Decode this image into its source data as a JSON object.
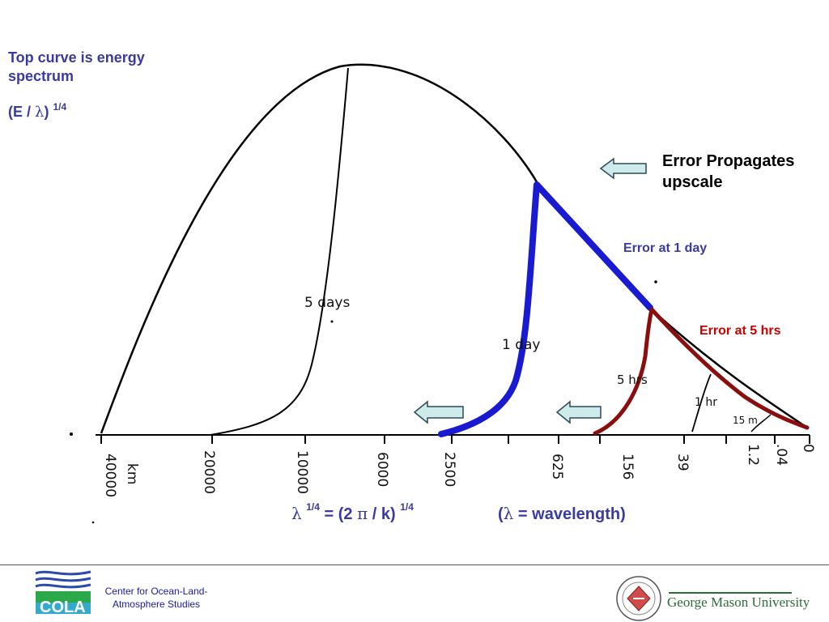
{
  "intro": {
    "line1": "Top curve is energy spectrum",
    "formula_prefix": "(E / ",
    "lambda": "λ",
    "formula_suffix": ")",
    "exponent": "1/4"
  },
  "annotations": {
    "propagates": "Error Propagates upscale",
    "error_1day": "Error at 1 day",
    "error_5hrs": "Error at 5 hrs"
  },
  "curve_labels": {
    "five_days": "5 days",
    "one_day": "1 day",
    "five_hrs": "5 hrs",
    "one_hr": "1 hr",
    "fifteen_min": "15 m"
  },
  "axis": {
    "ticks": [
      "40000",
      "20000",
      "10000",
      "6000",
      "2500",
      "625",
      "156",
      "39",
      "1.2",
      ".04",
      "0"
    ],
    "unit": "km"
  },
  "formula": {
    "lambda": "λ",
    "exp1": "1/4",
    "middle": " = (2 ",
    "pi": "π",
    "end": " / k)",
    "exp2": "1/4",
    "note_open": "(",
    "note_lambda": "λ",
    "note_rest": " = wavelength)"
  },
  "footer": {
    "cola_logo_text": "COLA",
    "cola_caption": "Center for Ocean-Land-Atmosphere Studies",
    "gmu_name": "George Mason University"
  },
  "colors": {
    "spectrum_line": "#000000",
    "error_1day": "#1a1ad0",
    "error_5hrs": "#8a0e0e",
    "arrow_fill": "#cfeaea",
    "title_text": "#3a3aa0",
    "error_5hrs_text": "#c80000"
  }
}
